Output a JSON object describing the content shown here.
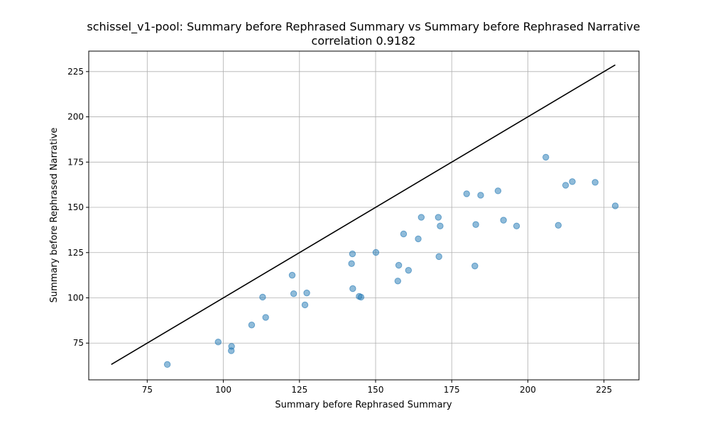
{
  "chart_data": {
    "type": "scatter",
    "title": "schissel_v1-pool: Summary before Rephrased Summary vs Summary before Rephrased Narrative",
    "subtitle": "correlation 0.9182",
    "xlabel": "Summary before Rephrased Summary",
    "ylabel": "Summary before Rephrased Narrative",
    "xlim": [
      55.8,
      236.5
    ],
    "ylim": [
      54.7,
      236.3
    ],
    "xticks": [
      75,
      100,
      125,
      150,
      175,
      200,
      225
    ],
    "yticks": [
      75,
      100,
      125,
      150,
      175,
      200,
      225
    ],
    "grid": true,
    "point_color": "#1f77b4",
    "line_color": "#000000",
    "reference_line": {
      "x": [
        63.2,
        228.7
      ],
      "y": [
        63.2,
        228.7
      ]
    },
    "points": [
      {
        "x": 81.6,
        "y": 63.2
      },
      {
        "x": 98.3,
        "y": 75.6
      },
      {
        "x": 102.6,
        "y": 70.8
      },
      {
        "x": 102.7,
        "y": 73.2
      },
      {
        "x": 109.3,
        "y": 85.0
      },
      {
        "x": 112.9,
        "y": 100.4
      },
      {
        "x": 113.9,
        "y": 89.2
      },
      {
        "x": 122.6,
        "y": 112.5
      },
      {
        "x": 123.1,
        "y": 102.3
      },
      {
        "x": 126.8,
        "y": 96.1
      },
      {
        "x": 127.4,
        "y": 102.7
      },
      {
        "x": 142.1,
        "y": 118.9
      },
      {
        "x": 142.4,
        "y": 124.3
      },
      {
        "x": 142.5,
        "y": 105.1
      },
      {
        "x": 144.6,
        "y": 100.8
      },
      {
        "x": 145.2,
        "y": 100.4
      },
      {
        "x": 150.1,
        "y": 125.1
      },
      {
        "x": 157.3,
        "y": 109.3
      },
      {
        "x": 157.6,
        "y": 118.0
      },
      {
        "x": 159.2,
        "y": 135.3
      },
      {
        "x": 160.8,
        "y": 115.2
      },
      {
        "x": 164.0,
        "y": 132.6
      },
      {
        "x": 165.0,
        "y": 144.5
      },
      {
        "x": 170.6,
        "y": 144.5
      },
      {
        "x": 170.8,
        "y": 122.8
      },
      {
        "x": 171.2,
        "y": 139.7
      },
      {
        "x": 179.9,
        "y": 157.5
      },
      {
        "x": 182.6,
        "y": 117.6
      },
      {
        "x": 182.9,
        "y": 140.5
      },
      {
        "x": 184.5,
        "y": 156.7
      },
      {
        "x": 190.2,
        "y": 159.1
      },
      {
        "x": 192.0,
        "y": 142.9
      },
      {
        "x": 196.3,
        "y": 139.7
      },
      {
        "x": 205.9,
        "y": 177.7
      },
      {
        "x": 210.0,
        "y": 140.1
      },
      {
        "x": 212.4,
        "y": 162.2
      },
      {
        "x": 214.6,
        "y": 164.2
      },
      {
        "x": 222.1,
        "y": 163.8
      },
      {
        "x": 228.7,
        "y": 150.8
      }
    ]
  }
}
